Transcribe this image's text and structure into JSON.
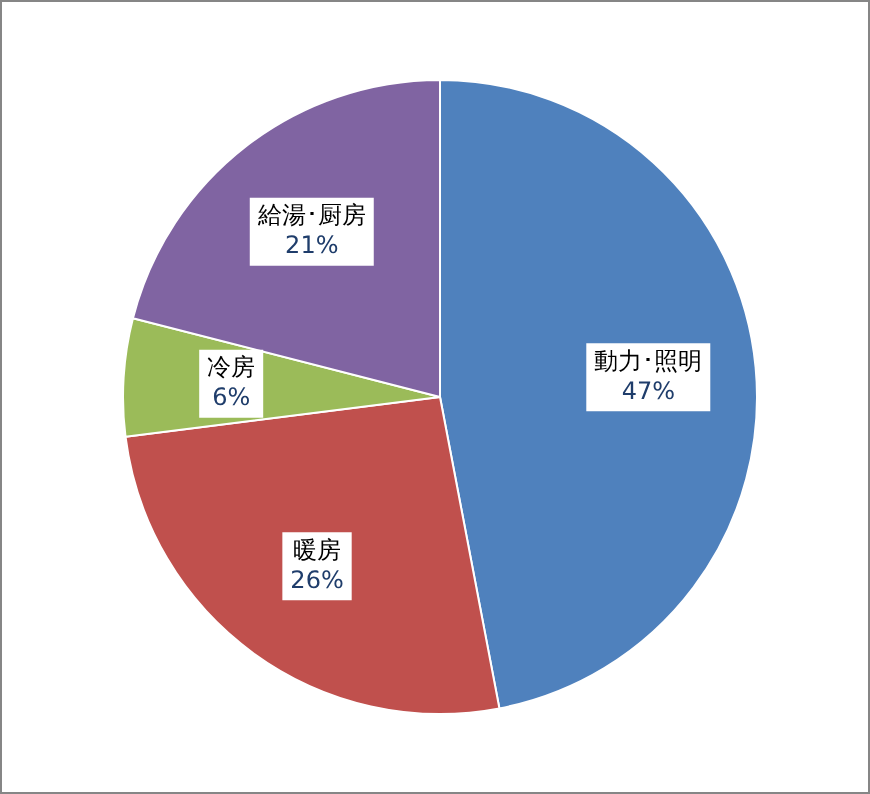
{
  "chart_data": {
    "type": "pie",
    "categories": [
      "動力･照明",
      "暖房",
      "冷房",
      "給湯･厨房"
    ],
    "values": [
      47,
      26,
      6,
      21
    ],
    "value_labels": [
      "47%",
      "26%",
      "6%",
      "21%"
    ],
    "colors": [
      "#4f81bd",
      "#c0504d",
      "#9bbb59",
      "#8064a2"
    ],
    "legend": false
  }
}
